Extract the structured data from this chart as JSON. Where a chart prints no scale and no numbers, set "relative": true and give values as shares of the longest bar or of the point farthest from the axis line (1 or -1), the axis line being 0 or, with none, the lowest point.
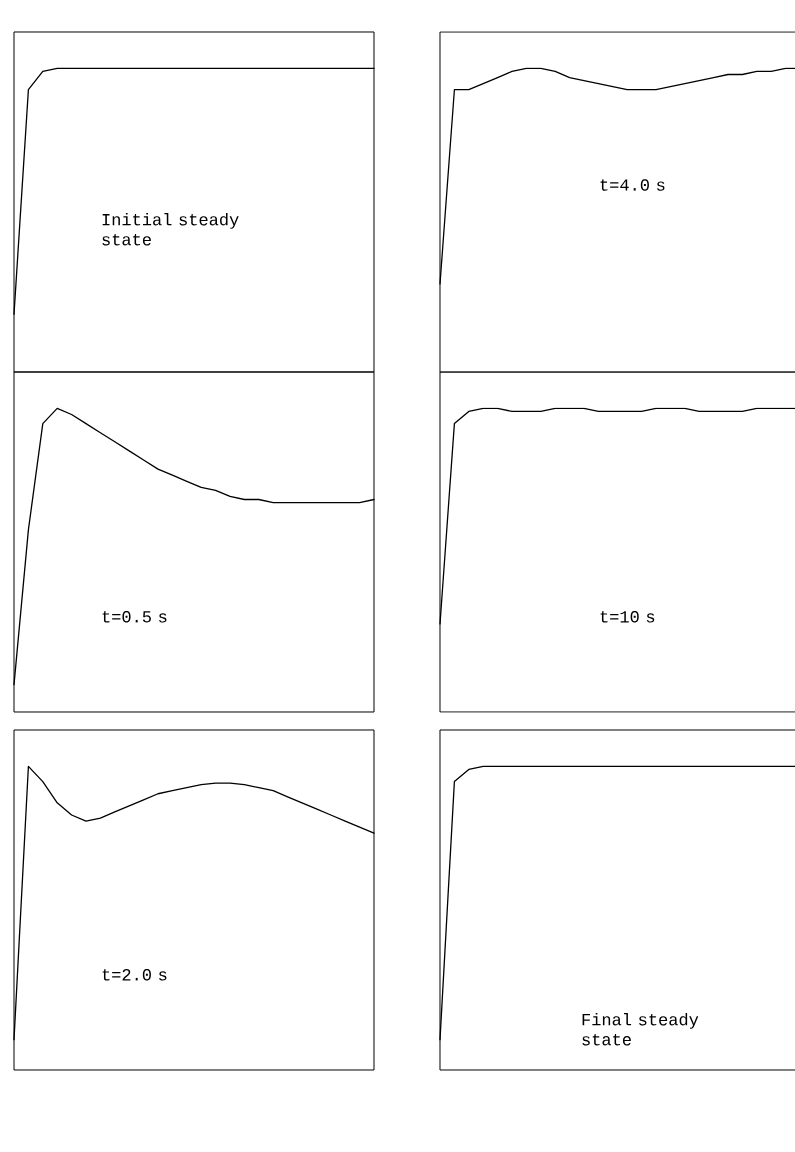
{
  "chart_data": [
    {
      "type": "line",
      "relative": true,
      "color": "#000000",
      "categories": [
        null,
        null,
        null,
        null,
        null,
        null,
        null,
        null,
        null,
        null,
        null,
        null,
        null,
        null,
        null,
        null,
        null,
        null,
        null,
        null,
        null,
        null,
        null,
        null,
        null,
        null
      ],
      "values": [
        0.19,
        0.93,
        0.99,
        1,
        1,
        1,
        1,
        1,
        1,
        1,
        1,
        1,
        1,
        1,
        1,
        1,
        1,
        1,
        1,
        1,
        1,
        1,
        1,
        1,
        1,
        1
      ],
      "annotations": [
        "Initial steady state"
      ]
    },
    {
      "type": "line",
      "relative": true,
      "color": "#000000",
      "categories": [
        null,
        null,
        null,
        null,
        null,
        null,
        null,
        null,
        null,
        null,
        null,
        null,
        null,
        null,
        null,
        null,
        null,
        null,
        null,
        null,
        null,
        null,
        null,
        null,
        null,
        null
      ],
      "values": [
        0.29,
        0.93,
        0.93,
        0.95,
        0.97,
        0.99,
        1,
        1,
        0.99,
        0.97,
        0.96,
        0.95,
        0.94,
        0.93,
        0.93,
        0.93,
        0.94,
        0.95,
        0.96,
        0.97,
        0.98,
        0.98,
        0.99,
        0.99,
        1,
        1
      ],
      "annotations": [
        "t=4.0 s"
      ]
    },
    {
      "type": "line",
      "relative": true,
      "color": "#000000",
      "categories": [
        null,
        null,
        null,
        null,
        null,
        null,
        null,
        null,
        null,
        null,
        null,
        null,
        null,
        null,
        null,
        null,
        null,
        null,
        null,
        null,
        null,
        null,
        null,
        null,
        null,
        null
      ],
      "values": [
        0.09,
        0.6,
        0.95,
        1,
        0.98,
        0.95,
        0.92,
        0.89,
        0.86,
        0.83,
        0.8,
        0.78,
        0.76,
        0.74,
        0.73,
        0.71,
        0.7,
        0.7,
        0.69,
        0.69,
        0.69,
        0.69,
        0.69,
        0.69,
        0.69,
        0.7
      ],
      "annotations": [
        "t=0.5 s"
      ]
    },
    {
      "type": "line",
      "relative": true,
      "color": "#000000",
      "categories": [
        null,
        null,
        null,
        null,
        null,
        null,
        null,
        null,
        null,
        null,
        null,
        null,
        null,
        null,
        null,
        null,
        null,
        null,
        null,
        null,
        null,
        null,
        null,
        null,
        null,
        null
      ],
      "values": [
        0.29,
        0.95,
        0.99,
        1,
        1,
        0.99,
        0.99,
        0.99,
        1,
        1,
        1,
        0.99,
        0.99,
        0.99,
        0.99,
        1,
        1,
        1,
        0.99,
        0.99,
        0.99,
        0.99,
        1,
        1,
        1,
        1
      ],
      "annotations": [
        "t=10 s"
      ]
    },
    {
      "type": "line",
      "relative": true,
      "color": "#000000",
      "categories": [
        null,
        null,
        null,
        null,
        null,
        null,
        null,
        null,
        null,
        null,
        null,
        null,
        null,
        null,
        null,
        null,
        null,
        null,
        null,
        null,
        null,
        null,
        null,
        null,
        null,
        null
      ],
      "values": [
        0.1,
        1,
        0.95,
        0.88,
        0.84,
        0.82,
        0.83,
        0.85,
        0.87,
        0.89,
        0.91,
        0.92,
        0.93,
        0.94,
        0.945,
        0.945,
        0.94,
        0.93,
        0.92,
        0.9,
        0.88,
        0.86,
        0.84,
        0.82,
        0.8,
        0.78
      ],
      "annotations": [
        "t=2.0 s"
      ]
    },
    {
      "type": "line",
      "relative": true,
      "color": "#000000",
      "categories": [
        null,
        null,
        null,
        null,
        null,
        null,
        null,
        null,
        null,
        null,
        null,
        null,
        null,
        null,
        null,
        null,
        null,
        null,
        null,
        null,
        null,
        null,
        null,
        null,
        null,
        null
      ],
      "values": [
        0.1,
        0.95,
        0.99,
        1,
        1,
        1,
        1,
        1,
        1,
        1,
        1,
        1,
        1,
        1,
        1,
        1,
        1,
        1,
        1,
        1,
        1,
        1,
        1,
        1,
        1,
        1
      ],
      "annotations": [
        "Final steady state"
      ]
    }
  ]
}
